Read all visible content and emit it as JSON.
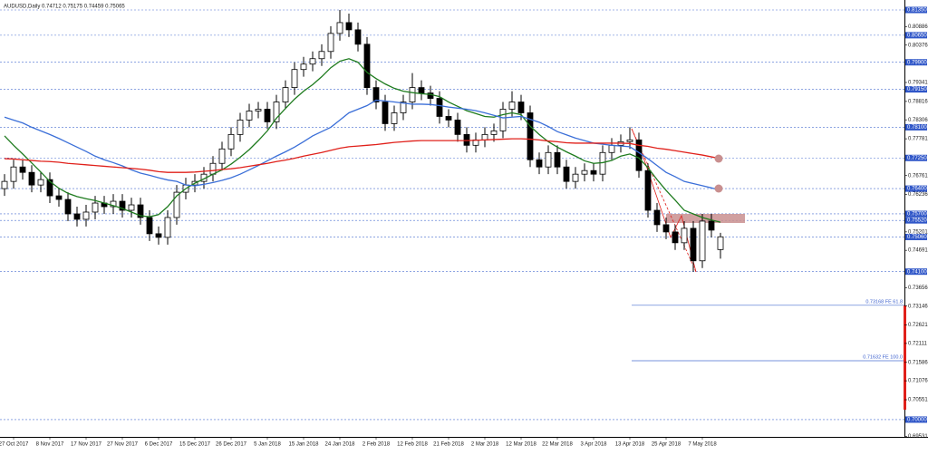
{
  "chart_data": {
    "type": "candlestick",
    "title": "AUDUSD,Daily  0.74712 0.75175 0.74459 0.75065",
    "ylim": [
      0.69522,
      0.81626
    ],
    "yticks": [
      0.80886,
      0.80376,
      0.79341,
      0.78816,
      0.78306,
      0.77781,
      0.76761,
      0.76236,
      0.75201,
      0.74691,
      0.73656,
      0.73146,
      0.72621,
      0.72111,
      0.71586,
      0.71076,
      0.70551,
      0.69531
    ],
    "levels": [
      {
        "value": 0.8135,
        "label": "0.81350"
      },
      {
        "value": 0.8065,
        "label": "0.80650"
      },
      {
        "value": 0.799,
        "label": "0.79900"
      },
      {
        "value": 0.7915,
        "label": "0.79150"
      },
      {
        "value": 0.781,
        "label": "0.78100"
      },
      {
        "value": 0.7725,
        "label": "0.77250"
      },
      {
        "value": 0.764,
        "label": "0.76400"
      },
      {
        "value": 0.757,
        "label": "0.75700"
      },
      {
        "value": 0.7552,
        "label": "0.75520"
      },
      {
        "value": 0.7506,
        "label": "0.75060"
      },
      {
        "value": 0.741,
        "label": "0.74100"
      },
      {
        "value": 0.7,
        "label": "0.70000"
      }
    ],
    "fib_levels": [
      {
        "value": 0.73168,
        "label": "0.73168 FE 61.8"
      },
      {
        "value": 0.71632,
        "label": "0.71632 FE 100.0"
      }
    ],
    "categories": [
      null,
      "27 Oct 2017",
      null,
      null,
      null,
      "8 Nov 2017",
      null,
      null,
      null,
      "17 Nov 2017",
      null,
      null,
      null,
      "27 Nov 2017",
      null,
      null,
      null,
      "6 Dec 2017",
      null,
      null,
      null,
      "15 Dec 2017",
      null,
      null,
      null,
      "26 Dec 2017",
      null,
      null,
      null,
      "5 Jan 2018",
      null,
      null,
      null,
      "15 Jan 2018",
      null,
      null,
      null,
      "24 Jan 2018",
      null,
      null,
      null,
      "2 Feb 2018",
      null,
      null,
      null,
      "12 Feb 2018",
      null,
      null,
      null,
      "21 Feb 2018",
      null,
      null,
      null,
      "2 Mar 2018",
      null,
      null,
      null,
      "12 Mar 2018",
      null,
      null,
      null,
      "22 Mar 2018",
      null,
      null,
      null,
      "3 Apr 2018",
      null,
      null,
      null,
      "13 Apr 2018",
      null,
      null,
      null,
      "25 Apr 2018",
      null,
      null,
      null,
      "7 May 2018",
      null,
      null
    ],
    "open": [
      0.764,
      0.766,
      0.77,
      0.7685,
      0.765,
      0.7665,
      0.762,
      0.761,
      0.757,
      0.7555,
      0.7575,
      0.76,
      0.759,
      0.7605,
      0.758,
      0.7595,
      0.756,
      0.7515,
      0.7505,
      0.756,
      0.763,
      0.765,
      0.766,
      0.768,
      0.771,
      0.775,
      0.779,
      0.783,
      0.7855,
      0.786,
      0.7825,
      0.788,
      0.792,
      0.797,
      0.7985,
      0.8,
      0.802,
      0.807,
      0.81,
      0.808,
      0.804,
      0.792,
      0.788,
      0.782,
      0.785,
      0.788,
      0.792,
      0.7905,
      0.789,
      0.784,
      0.783,
      0.779,
      0.776,
      0.7775,
      0.779,
      0.78,
      0.786,
      0.788,
      0.785,
      0.772,
      0.77,
      0.774,
      0.77,
      0.766,
      0.768,
      0.769,
      0.768,
      0.774,
      0.776,
      0.777,
      0.7775,
      0.769,
      0.758,
      0.754,
      0.752,
      0.749,
      0.753,
      0.744,
      0.755,
      0.74712
    ],
    "high": [
      0.768,
      0.772,
      0.772,
      0.7705,
      0.7685,
      0.7685,
      0.764,
      0.763,
      0.759,
      0.7595,
      0.762,
      0.762,
      0.7625,
      0.7625,
      0.7615,
      0.7615,
      0.758,
      0.7535,
      0.758,
      0.765,
      0.767,
      0.768,
      0.77,
      0.773,
      0.777,
      0.781,
      0.785,
      0.7875,
      0.788,
      0.788,
      0.79,
      0.794,
      0.799,
      0.8005,
      0.802,
      0.804,
      0.809,
      0.8135,
      0.8125,
      0.81,
      0.806,
      0.794,
      0.79,
      0.787,
      0.79,
      0.796,
      0.794,
      0.7925,
      0.791,
      0.786,
      0.785,
      0.781,
      0.7795,
      0.781,
      0.782,
      0.788,
      0.791,
      0.79,
      0.787,
      0.774,
      0.776,
      0.776,
      0.772,
      0.77,
      0.771,
      0.771,
      0.776,
      0.778,
      0.779,
      0.781,
      0.7795,
      0.771,
      0.76,
      0.756,
      0.754,
      0.755,
      0.755,
      0.757,
      0.757,
      0.75175
    ],
    "low": [
      0.762,
      0.764,
      0.7665,
      0.763,
      0.763,
      0.76,
      0.759,
      0.755,
      0.7535,
      0.7535,
      0.7555,
      0.757,
      0.757,
      0.756,
      0.756,
      0.754,
      0.7495,
      0.7485,
      0.7485,
      0.754,
      0.761,
      0.763,
      0.764,
      0.766,
      0.769,
      0.773,
      0.777,
      0.781,
      0.7835,
      0.7805,
      0.7805,
      0.786,
      0.79,
      0.795,
      0.7965,
      0.798,
      0.8,
      0.805,
      0.806,
      0.802,
      0.79,
      0.786,
      0.78,
      0.78,
      0.783,
      0.786,
      0.7885,
      0.787,
      0.782,
      0.781,
      0.777,
      0.774,
      0.774,
      0.7755,
      0.777,
      0.778,
      0.784,
      0.783,
      0.77,
      0.768,
      0.768,
      0.768,
      0.764,
      0.764,
      0.766,
      0.766,
      0.766,
      0.772,
      0.774,
      0.775,
      0.767,
      0.756,
      0.752,
      0.75,
      0.747,
      0.747,
      0.741,
      0.742,
      0.7505,
      0.74459
    ],
    "close": [
      0.766,
      0.77,
      0.7685,
      0.765,
      0.7665,
      0.762,
      0.761,
      0.757,
      0.7555,
      0.7575,
      0.76,
      0.759,
      0.7605,
      0.758,
      0.7595,
      0.756,
      0.7515,
      0.7505,
      0.756,
      0.763,
      0.765,
      0.766,
      0.768,
      0.771,
      0.775,
      0.779,
      0.783,
      0.7855,
      0.786,
      0.7825,
      0.788,
      0.792,
      0.797,
      0.7985,
      0.8,
      0.802,
      0.807,
      0.81,
      0.808,
      0.804,
      0.792,
      0.788,
      0.782,
      0.785,
      0.788,
      0.792,
      0.7905,
      0.789,
      0.784,
      0.783,
      0.779,
      0.776,
      0.7775,
      0.779,
      0.78,
      0.786,
      0.788,
      0.785,
      0.772,
      0.77,
      0.774,
      0.77,
      0.766,
      0.768,
      0.769,
      0.768,
      0.774,
      0.776,
      0.777,
      0.7775,
      0.769,
      0.758,
      0.754,
      0.752,
      0.749,
      0.753,
      0.744,
      0.755,
      0.7525,
      0.75065
    ],
    "up_color": "#ffffff",
    "down_color": "#000000",
    "series": [
      {
        "color": "#1e7b1e",
        "values": [
          0.7786,
          0.776,
          0.7736,
          0.7711,
          0.7686,
          0.766,
          0.7641,
          0.7627,
          0.7618,
          0.7612,
          0.7607,
          0.76,
          0.7593,
          0.7585,
          0.7575,
          0.7565,
          0.7562,
          0.7568,
          0.759,
          0.762,
          0.764,
          0.7655,
          0.7667,
          0.768,
          0.7692,
          0.7708,
          0.7727,
          0.7748,
          0.7773,
          0.78,
          0.7835,
          0.7862,
          0.7888,
          0.791,
          0.7928,
          0.795,
          0.7975,
          0.7993,
          0.8,
          0.799,
          0.7962,
          0.7945,
          0.793,
          0.7918,
          0.791,
          0.7906,
          0.7903,
          0.7901,
          0.7895,
          0.788,
          0.7868,
          0.7856,
          0.7848,
          0.784,
          0.7838,
          0.7845,
          0.785,
          0.7845,
          0.7813,
          0.779,
          0.777,
          0.7755,
          0.7742,
          0.773,
          0.7717,
          0.771,
          0.7712,
          0.7718,
          0.773,
          0.7736,
          0.7725,
          0.7698,
          0.7665,
          0.7635,
          0.7608,
          0.758,
          0.757,
          0.756,
          0.7553,
          0.7547
        ]
      },
      {
        "color": "#3b6fd8",
        "values": [
          0.7838,
          0.783,
          0.7822,
          0.781,
          0.78,
          0.779,
          0.7779,
          0.7767,
          0.7755,
          0.7743,
          0.773,
          0.772,
          0.7712,
          0.7703,
          0.7692,
          0.7683,
          0.7677,
          0.767,
          0.7664,
          0.766,
          0.765,
          0.7648,
          0.7652,
          0.7657,
          0.7663,
          0.767,
          0.768,
          0.7692,
          0.7704,
          0.7717,
          0.773,
          0.7742,
          0.7755,
          0.777,
          0.7786,
          0.7798,
          0.781,
          0.783,
          0.785,
          0.786,
          0.787,
          0.7885,
          0.7883,
          0.788,
          0.7877,
          0.7874,
          0.7874,
          0.7873,
          0.787,
          0.7866,
          0.7863,
          0.786,
          0.7856,
          0.785,
          0.7843,
          0.7836,
          0.7838,
          0.784,
          0.7832,
          0.7824,
          0.7812,
          0.7798,
          0.7789,
          0.778,
          0.7773,
          0.7766,
          0.7763,
          0.776,
          0.7758,
          0.7756,
          0.774,
          0.7723,
          0.7704,
          0.7685,
          0.7673,
          0.766,
          0.7654,
          0.7648,
          0.7642,
          0.7635
        ]
      },
      {
        "color": "#e0201a",
        "values": [
          0.7723,
          0.7722,
          0.772,
          0.7718,
          0.7716,
          0.7715,
          0.7713,
          0.771,
          0.7708,
          0.7706,
          0.7704,
          0.7702,
          0.77,
          0.7698,
          0.7696,
          0.7694,
          0.7691,
          0.7687,
          0.7685,
          0.7685,
          0.7685,
          0.7686,
          0.7688,
          0.769,
          0.7693,
          0.7695,
          0.7698,
          0.7702,
          0.7706,
          0.771,
          0.7715,
          0.7719,
          0.7724,
          0.773,
          0.7735,
          0.774,
          0.7746,
          0.7752,
          0.7756,
          0.7758,
          0.776,
          0.7762,
          0.7765,
          0.7768,
          0.777,
          0.7772,
          0.7773,
          0.7773,
          0.7773,
          0.7773,
          0.7773,
          0.7773,
          0.7774,
          0.7775,
          0.7776,
          0.7777,
          0.7778,
          0.7778,
          0.7777,
          0.7775,
          0.7772,
          0.777,
          0.7767,
          0.7766,
          0.7766,
          0.7766,
          0.7766,
          0.7766,
          0.7766,
          0.7765,
          0.776,
          0.7757,
          0.7752,
          0.7749,
          0.7745,
          0.7741,
          0.7737,
          0.7733,
          0.7728,
          0.7723
        ]
      }
    ]
  }
}
